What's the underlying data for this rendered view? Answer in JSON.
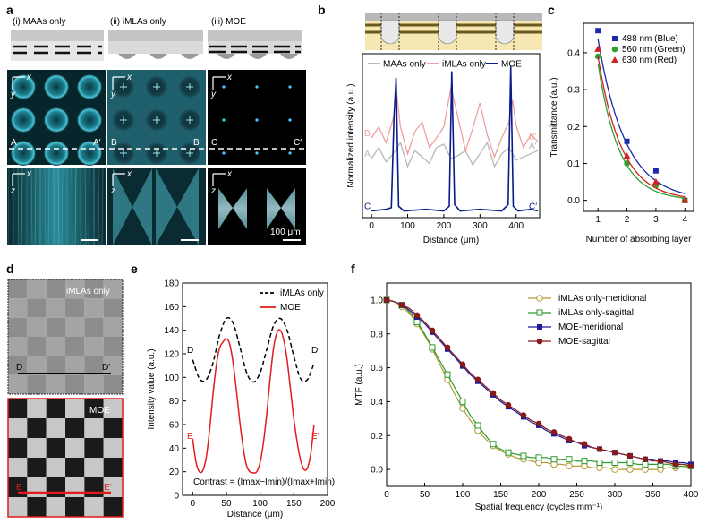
{
  "panels": {
    "a": {
      "label": "a",
      "columns": [
        {
          "title": "(i) MAAs only",
          "top_letters": [
            "A",
            "A′"
          ]
        },
        {
          "title": "(ii) iMLAs only",
          "top_letters": [
            "B",
            "B′"
          ]
        },
        {
          "title": "(iii) MOE",
          "top_letters": [
            "C",
            "C′"
          ]
        }
      ],
      "axis_xy": {
        "x": "x",
        "y": "y"
      },
      "axis_xz": {
        "x": "x",
        "z": "z"
      },
      "scalebar": "100 μm"
    },
    "b": {
      "label": "b"
    },
    "c": {
      "label": "c"
    },
    "d": {
      "label": "d",
      "top_tag": "iMLAs only",
      "bottom_tag": "MOE",
      "top_letters": [
        "D",
        "D′"
      ],
      "bottom_letters": [
        "E",
        "E′"
      ]
    },
    "e": {
      "label": "e",
      "letters_top": [
        "D",
        "D′"
      ],
      "letters_bottom": [
        "E",
        "E′"
      ],
      "formula": "Contrast = (Imax−Imin)/(Imax+Imin)"
    },
    "f": {
      "label": "f"
    }
  },
  "chart_data": [
    {
      "id": "b",
      "type": "line",
      "xlabel": "Distance (μm)",
      "ylabel": "Normalized intensity (a.u.)",
      "xlim": [
        -25,
        465
      ],
      "xticks": [
        0,
        100,
        200,
        300,
        400
      ],
      "series": [
        {
          "name": "MAAs only",
          "color": "#b8b8b8",
          "start_label": "A",
          "end_label": "A′",
          "x": [
            0,
            20,
            40,
            60,
            80,
            100,
            120,
            140,
            160,
            180,
            200,
            220,
            240,
            260,
            280,
            300,
            320,
            340,
            360,
            380,
            400,
            420,
            440,
            460
          ],
          "y": [
            0.35,
            0.42,
            0.33,
            0.38,
            0.45,
            0.3,
            0.4,
            0.36,
            0.32,
            0.42,
            0.44,
            0.35,
            0.37,
            0.4,
            0.31,
            0.38,
            0.45,
            0.3,
            0.38,
            0.42,
            0.34,
            0.36,
            0.38,
            0.4
          ]
        },
        {
          "name": "iMLAs only",
          "color": "#f0a0a0",
          "start_label": "B",
          "end_label": "B′",
          "x": [
            0,
            20,
            40,
            60,
            70,
            80,
            100,
            120,
            140,
            160,
            180,
            200,
            220,
            240,
            260,
            280,
            300,
            320,
            340,
            360,
            380,
            390,
            400,
            420,
            440,
            460
          ],
          "y": [
            0.48,
            0.55,
            0.45,
            0.6,
            0.76,
            0.55,
            0.38,
            0.52,
            0.58,
            0.42,
            0.48,
            0.55,
            0.8,
            0.6,
            0.4,
            0.54,
            0.7,
            0.5,
            0.36,
            0.48,
            0.58,
            0.72,
            0.56,
            0.42,
            0.5,
            0.46
          ]
        },
        {
          "name": "MOE",
          "color": "#0b1b8a",
          "start_label": "C",
          "end_label": "C′",
          "x": [
            0,
            40,
            55,
            62,
            68,
            75,
            90,
            150,
            200,
            215,
            222,
            230,
            245,
            300,
            360,
            378,
            385,
            392,
            405,
            440,
            460
          ],
          "y": [
            0.02,
            0.03,
            0.04,
            0.6,
            0.86,
            0.05,
            0.02,
            0.03,
            0.02,
            0.05,
            0.9,
            0.06,
            0.02,
            0.03,
            0.02,
            0.06,
            0.93,
            0.05,
            0.02,
            0.03,
            0.02
          ]
        }
      ]
    },
    {
      "id": "c",
      "type": "scatter",
      "xlabel": "Number of absorbing layer",
      "ylabel": "Transmittance (a.u.)",
      "xlim": [
        0.5,
        4.3
      ],
      "ylim": [
        -0.03,
        0.48
      ],
      "xticks": [
        1,
        2,
        3,
        4
      ],
      "yticks": [
        0.0,
        0.1,
        0.2,
        0.3,
        0.4
      ],
      "series": [
        {
          "name": "488 nm (Blue)",
          "color": "#1a2aa8",
          "marker": "square",
          "x": [
            1,
            2,
            3,
            4
          ],
          "y": [
            0.46,
            0.16,
            0.08,
            0.0
          ]
        },
        {
          "name": "560 nm (Green)",
          "color": "#2ea02e",
          "marker": "circle",
          "x": [
            1,
            2,
            3,
            4
          ],
          "y": [
            0.39,
            0.1,
            0.04,
            0.0
          ]
        },
        {
          "name": "630 nm (Red)",
          "color": "#d42020",
          "marker": "triangle",
          "x": [
            1,
            2,
            3,
            4
          ],
          "y": [
            0.41,
            0.12,
            0.05,
            0.0
          ]
        }
      ]
    },
    {
      "id": "e",
      "type": "line",
      "xlabel": "Distance (μm)",
      "ylabel": "Intensity value (a.u.)",
      "xlim": [
        -15,
        200
      ],
      "ylim": [
        0,
        180
      ],
      "xticks": [
        0,
        50,
        100,
        150,
        200
      ],
      "yticks": [
        0,
        20,
        40,
        60,
        80,
        100,
        120,
        140,
        160,
        180
      ],
      "series": [
        {
          "name": "iMLAs only",
          "color": "#000000",
          "dash": "5,3",
          "x": [
            0,
            10,
            20,
            30,
            40,
            50,
            60,
            70,
            80,
            90,
            100,
            110,
            120,
            130,
            140,
            150,
            160,
            170,
            180
          ],
          "y": [
            115,
            99,
            98,
            112,
            136,
            150,
            146,
            126,
            104,
            96,
            104,
            124,
            144,
            150,
            140,
            118,
            99,
            98,
            112
          ]
        },
        {
          "name": "MOE",
          "color": "#e41a1a",
          "x": [
            0,
            5,
            10,
            15,
            20,
            25,
            30,
            35,
            40,
            45,
            50,
            55,
            60,
            65,
            70,
            75,
            80,
            85,
            90,
            95,
            100,
            105,
            110,
            115,
            120,
            125,
            130,
            135,
            140,
            145,
            150,
            155,
            160,
            165,
            170,
            175,
            180
          ],
          "y": [
            48,
            28,
            20,
            21,
            32,
            55,
            85,
            110,
            125,
            130,
            133,
            128,
            112,
            88,
            62,
            40,
            25,
            20,
            19,
            20,
            28,
            45,
            70,
            100,
            125,
            138,
            140,
            132,
            115,
            90,
            65,
            45,
            30,
            22,
            23,
            35,
            60
          ]
        }
      ]
    },
    {
      "id": "f",
      "type": "line",
      "xlabel": "Spatial frequency (cycles mm⁻¹)",
      "ylabel": "MTF (a.u.)",
      "xlim": [
        0,
        400
      ],
      "ylim": [
        -0.1,
        1.1
      ],
      "xticks": [
        0,
        50,
        100,
        150,
        200,
        250,
        300,
        350,
        400
      ],
      "yticks": [
        0.0,
        0.2,
        0.4,
        0.6,
        0.8,
        1.0
      ],
      "series": [
        {
          "name": "iMLAs only-meridional",
          "color": "#b39a2e",
          "marker": "open-circle",
          "x": [
            0,
            10,
            20,
            30,
            40,
            50,
            60,
            70,
            80,
            90,
            100,
            110,
            120,
            130,
            140,
            150,
            160,
            170,
            180,
            190,
            200,
            210,
            220,
            230,
            240,
            250,
            260,
            270,
            280,
            290,
            300,
            310,
            320,
            330,
            340,
            350,
            360,
            370,
            380,
            390,
            400
          ],
          "y": [
            1.0,
            0.99,
            0.96,
            0.92,
            0.86,
            0.79,
            0.71,
            0.62,
            0.53,
            0.44,
            0.36,
            0.29,
            0.23,
            0.18,
            0.14,
            0.11,
            0.09,
            0.07,
            0.06,
            0.05,
            0.04,
            0.04,
            0.03,
            0.03,
            0.02,
            0.02,
            0.02,
            0.01,
            0.01,
            0.01,
            0.0,
            0.0,
            0.0,
            0.0,
            0.0,
            0.0,
            0.0,
            0.01,
            0.01,
            0.01,
            0.02
          ]
        },
        {
          "name": "iMLAs only-sagittal",
          "color": "#2e9a2e",
          "marker": "open-square",
          "x": [
            0,
            10,
            20,
            30,
            40,
            50,
            60,
            70,
            80,
            90,
            100,
            110,
            120,
            130,
            140,
            150,
            160,
            170,
            180,
            190,
            200,
            210,
            220,
            230,
            240,
            250,
            260,
            270,
            280,
            290,
            300,
            310,
            320,
            330,
            340,
            350,
            360,
            370,
            380,
            390,
            400
          ],
          "y": [
            1.0,
            0.99,
            0.97,
            0.93,
            0.87,
            0.8,
            0.72,
            0.64,
            0.56,
            0.48,
            0.4,
            0.32,
            0.26,
            0.2,
            0.15,
            0.12,
            0.1,
            0.09,
            0.08,
            0.07,
            0.07,
            0.07,
            0.06,
            0.06,
            0.06,
            0.05,
            0.05,
            0.05,
            0.04,
            0.04,
            0.04,
            0.04,
            0.04,
            0.03,
            0.03,
            0.03,
            0.03,
            0.03,
            0.02,
            0.02,
            0.02
          ]
        },
        {
          "name": "MOE-meridional",
          "color": "#1a1a9a",
          "marker": "square",
          "x": [
            0,
            10,
            20,
            30,
            40,
            50,
            60,
            70,
            80,
            90,
            100,
            110,
            120,
            130,
            140,
            150,
            160,
            170,
            180,
            190,
            200,
            210,
            220,
            230,
            240,
            250,
            260,
            270,
            280,
            290,
            300,
            310,
            320,
            330,
            340,
            350,
            360,
            370,
            380,
            390,
            400
          ],
          "y": [
            1.0,
            0.99,
            0.97,
            0.94,
            0.9,
            0.86,
            0.81,
            0.76,
            0.71,
            0.66,
            0.61,
            0.56,
            0.52,
            0.48,
            0.44,
            0.4,
            0.37,
            0.34,
            0.31,
            0.28,
            0.26,
            0.23,
            0.21,
            0.19,
            0.17,
            0.16,
            0.14,
            0.13,
            0.12,
            0.11,
            0.1,
            0.09,
            0.08,
            0.07,
            0.06,
            0.06,
            0.05,
            0.05,
            0.04,
            0.04,
            0.03
          ]
        },
        {
          "name": "MOE-sagittal",
          "color": "#8a1a1a",
          "marker": "circle",
          "x": [
            0,
            10,
            20,
            30,
            40,
            50,
            60,
            70,
            80,
            90,
            100,
            110,
            120,
            130,
            140,
            150,
            160,
            170,
            180,
            190,
            200,
            210,
            220,
            230,
            240,
            250,
            260,
            270,
            280,
            290,
            300,
            310,
            320,
            330,
            340,
            350,
            360,
            370,
            380,
            390,
            400
          ],
          "y": [
            1.0,
            0.99,
            0.97,
            0.95,
            0.91,
            0.87,
            0.82,
            0.77,
            0.72,
            0.67,
            0.62,
            0.57,
            0.53,
            0.49,
            0.45,
            0.41,
            0.38,
            0.35,
            0.32,
            0.29,
            0.27,
            0.24,
            0.22,
            0.2,
            0.18,
            0.16,
            0.15,
            0.13,
            0.12,
            0.11,
            0.1,
            0.09,
            0.08,
            0.07,
            0.06,
            0.05,
            0.05,
            0.04,
            0.03,
            0.03,
            0.02
          ]
        }
      ]
    }
  ]
}
